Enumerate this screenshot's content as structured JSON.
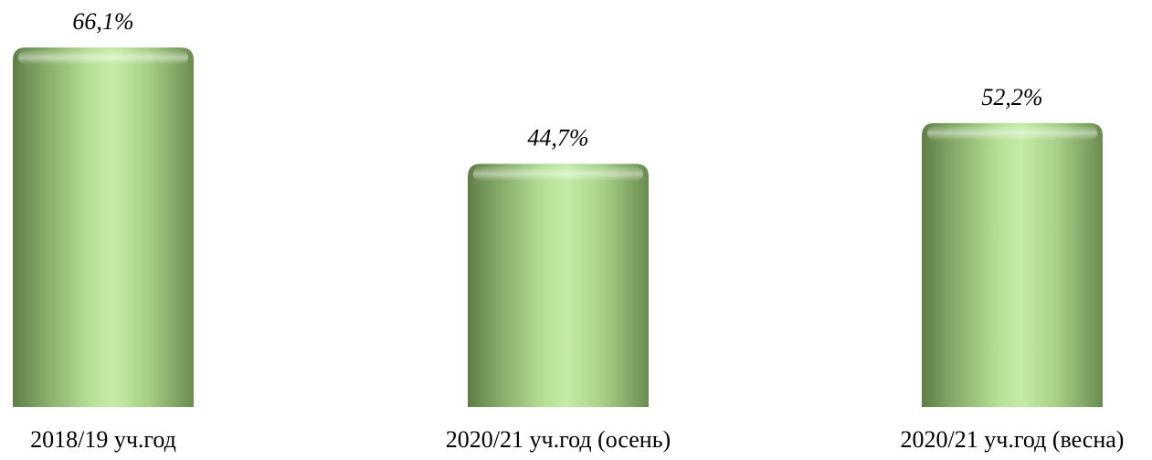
{
  "chart_data": {
    "type": "bar",
    "categories": [
      "2018/19 уч.год",
      "2020/21 уч.год (осень)",
      "2020/21 уч.год (весна)"
    ],
    "values": [
      66.1,
      44.7,
      52.2
    ],
    "value_labels": [
      "66,1%",
      "44,7%",
      "52,2%"
    ],
    "title": "",
    "xlabel": "",
    "ylabel": "",
    "ylim": [
      0,
      66.1
    ],
    "grid": false,
    "legend": "none",
    "bar_color": "#a9d18e",
    "bar_style": "3d-cylinder"
  }
}
